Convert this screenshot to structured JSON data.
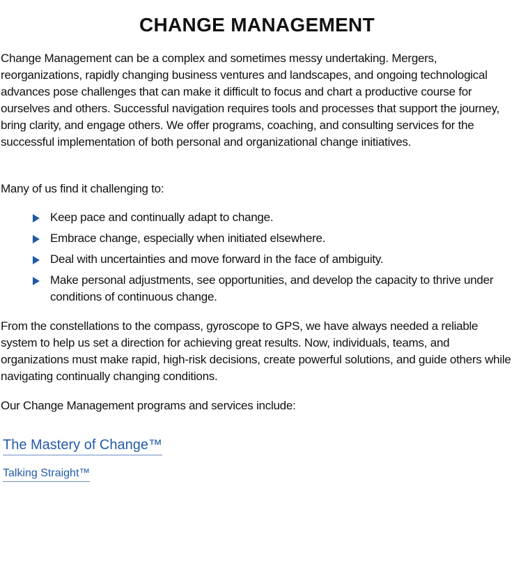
{
  "title": "CHANGE MANAGEMENT",
  "intro": "Change Management can be a complex and sometimes messy undertaking. Mergers, reorganizations, rapidly changing business ventures and landscapes, and ongoing technological advances pose challenges that can make it difficult to focus and chart a productive course for ourselves and others. Successful navigation requires tools and processes that support the journey, bring clarity, and engage others. We offer programs, coaching, and consulting services for the successful implementation of both personal and organizational change initiatives.",
  "challenges_lead": "Many of us find it challenging to:",
  "challenges": [
    "Keep pace and continually adapt to change.",
    "Embrace change, especially when initiated elsewhere.",
    "Deal with uncertainties and move forward in the face of ambiguity.",
    "Make personal adjustments, see opportunities, and develop the capacity to thrive under conditions of continuous change."
  ],
  "navigation": "From the constellations to the compass, gyroscope to GPS, we have always needed a reliable system to help us set a direction for achieving great results. Now, individuals, teams, and organizations must make rapid, high-risk decisions, create powerful solutions, and guide others while navigating continually changing conditions.",
  "programs_lead": "Our Change Management programs and services include:",
  "links": [
    "The Mastery of Change™",
    "Talking Straight™"
  ],
  "colors": {
    "accent": "#255ba8",
    "bullet": "#1f5aa6"
  },
  "icons": {
    "bullet": "triangle-right-icon"
  }
}
